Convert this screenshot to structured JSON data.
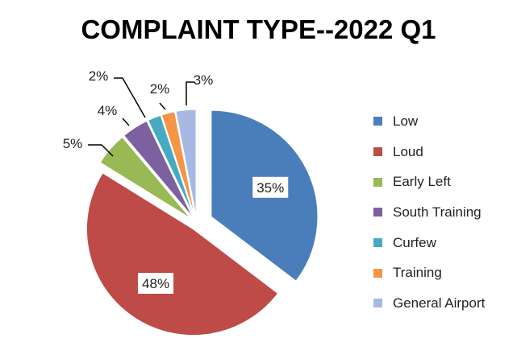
{
  "chart_data": {
    "type": "pie",
    "title": "COMPLAINT TYPE--2022 Q1",
    "legend_position": "right",
    "slices": [
      {
        "label": "Low",
        "value": 35,
        "display": "35%",
        "color": "#4a7ebb"
      },
      {
        "label": "Loud",
        "value": 48,
        "display": "48%",
        "color": "#be4b48"
      },
      {
        "label": "Early Left",
        "value": 5,
        "display": "5%",
        "color": "#98b954"
      },
      {
        "label": "South Training",
        "value": 4,
        "display": "4%",
        "color": "#7d60a0"
      },
      {
        "label": "Curfew",
        "value": 2,
        "display": "2%",
        "color": "#46aac5"
      },
      {
        "label": "Training",
        "value": 2,
        "display": "2%",
        "color": "#f69546"
      },
      {
        "label": "General Airport",
        "value": 3,
        "display": "3%",
        "color": "#a7b9e3"
      }
    ]
  }
}
